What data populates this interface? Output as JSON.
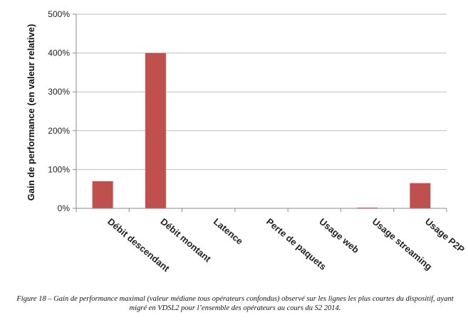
{
  "chart_data": {
    "type": "bar",
    "categories": [
      "Débit descendant",
      "Débit montant",
      "Latence",
      "Perte de paquets",
      "Usage web",
      "Usage streaming",
      "Usage P2P"
    ],
    "values": [
      70,
      400,
      0,
      0,
      0,
      2,
      65
    ],
    "ylabel": "Gain de performance (en valeur relative)",
    "ylim": [
      0,
      500
    ],
    "yticks": [
      "0%",
      "100%",
      "200%",
      "300%",
      "400%",
      "500%"
    ],
    "bar_color": "#c0504d",
    "grid": true
  },
  "caption": {
    "figure_label": "Figure 18 –",
    "text": " Gain de performance maximal (valeur médiane tous opérateurs confondus) observé sur les lignes les plus courtes du dispositif, ayant migré en VDSL2 pour l’ensemble des opérateurs au cours du S2 2014."
  }
}
